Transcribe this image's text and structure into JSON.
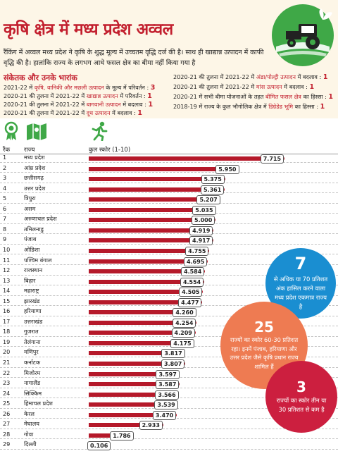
{
  "header": {
    "title": "कृषि क्षेत्र में मध्य प्रदेश अव्वल",
    "intro": "रैंकिंग में अव्वल मध्य प्रदेश ने कृषि के शुद्ध मूल्य में उच्चतम वृद्धि दर्ज की है। साथ ही खाद्यान्न उत्पादन में काफी वृद्धि की है। हालांकि राज्य के लगभग आधे फसल क्षेत्र का बीमा नहीं किया गया है"
  },
  "indicators": {
    "title": "संकेतक और उनके भारांक",
    "left": [
      {
        "pre": "2021-22 में ",
        "hl": "कृषि, वानिकी और मछली उत्पादन",
        "post": " के मूल्य में परिवर्तन : ",
        "value": "3"
      },
      {
        "pre": "2020-21 की तुलना में 2021-22 में ",
        "hl": "खाद्यान्न उत्पादन",
        "post": " में परिवर्तन : ",
        "value": "1"
      },
      {
        "pre": "2020-21 की तुलना में 2021-22 में ",
        "hl": "बागवानी उत्पादन",
        "post": " में बदलाव : ",
        "value": "1"
      },
      {
        "pre": "2020-21 की तुलना में 2021-22 में ",
        "hl": "दूध उत्पादन",
        "post": " में बदलाव : ",
        "value": "1"
      }
    ],
    "right": [
      {
        "pre": "2020-21 की तुलना में 2021-22 में ",
        "hl": "अंडा/पोल्ट्री उत्पादन",
        "post": " में बदलाव : ",
        "value": "1"
      },
      {
        "pre": "2020-21 की तुलना में 2021-22 में ",
        "hl": "मांस उत्पादन",
        "post": " में बदलाव : ",
        "value": "1"
      },
      {
        "pre": "2020-21 में सभी बीमा योजनाओं के तहत ",
        "hl": "बीमित फसल क्षेत्र",
        "post": " का हिस्सा : ",
        "value": "1"
      },
      {
        "pre": "2018-19 में राज्य के कुल भौगोलिक क्षेत्र में ",
        "hl": "डिग्रेडेड भूमि",
        "post": " का हिस्सा : ",
        "value": "1"
      }
    ]
  },
  "icons": [
    "medal-icon",
    "map-icon",
    "runner-icon"
  ],
  "colors": {
    "accent": "#c21f2e",
    "bar": "#b5192a",
    "blue": "#1a8ed1",
    "orange": "#ee7b52",
    "crimson": "#cc1f3f",
    "logo": "#3fa847"
  },
  "chart_data": {
    "type": "bar",
    "orientation": "horizontal",
    "columns": [
      "रैंक",
      "राज्य",
      "कुल स्कोर (1-10)"
    ],
    "xlim": [
      0,
      10
    ],
    "rows": [
      {
        "rank": "1",
        "state": "मध्य प्रदेश",
        "value": 7.715,
        "label": "7.715"
      },
      {
        "rank": "2",
        "state": "आंध्र प्रदेश",
        "value": 5.95,
        "label": "5.950"
      },
      {
        "rank": "3",
        "state": "छत्तीसगढ़",
        "value": 5.375,
        "label": "5.375"
      },
      {
        "rank": "4",
        "state": "उत्तर प्रदेश",
        "value": 5.361,
        "label": "5.361"
      },
      {
        "rank": "5",
        "state": "त्रिपुरा",
        "value": 5.207,
        "label": "5.207"
      },
      {
        "rank": "6",
        "state": "असम",
        "value": 5.035,
        "label": "5.035"
      },
      {
        "rank": "7",
        "state": "अरुणाचल प्रदेश",
        "value": 5.0,
        "label": "5.000"
      },
      {
        "rank": "8",
        "state": "तमिलनाडु",
        "value": 4.919,
        "label": "4.919"
      },
      {
        "rank": "9",
        "state": "पंजाब",
        "value": 4.917,
        "label": "4.917"
      },
      {
        "rank": "10",
        "state": "ओडिशा",
        "value": 4.755,
        "label": "4.755"
      },
      {
        "rank": "11",
        "state": "पश्चिम बंगाल",
        "value": 4.695,
        "label": "4.695"
      },
      {
        "rank": "12",
        "state": "राजस्थान",
        "value": 4.584,
        "label": "4.584"
      },
      {
        "rank": "13",
        "state": "बिहार",
        "value": 4.554,
        "label": "4.554"
      },
      {
        "rank": "14",
        "state": "महाराष्ट्र",
        "value": 4.505,
        "label": "4.505"
      },
      {
        "rank": "15",
        "state": "झारखंड",
        "value": 4.477,
        "label": "4.477"
      },
      {
        "rank": "16",
        "state": "हरियाणा",
        "value": 4.26,
        "label": "4.260"
      },
      {
        "rank": "17",
        "state": "उत्तराखंड",
        "value": 4.254,
        "label": "4.254"
      },
      {
        "rank": "18",
        "state": "गुजरात",
        "value": 4.209,
        "label": "4.209"
      },
      {
        "rank": "19",
        "state": "तेलंगाना",
        "value": 4.175,
        "label": "4.175"
      },
      {
        "rank": "20",
        "state": "मणिपुर",
        "value": 3.817,
        "label": "3.817"
      },
      {
        "rank": "21",
        "state": "कर्नाटक",
        "value": 3.807,
        "label": "3.807"
      },
      {
        "rank": "22",
        "state": "मिजोरम",
        "value": 3.597,
        "label": "3.597"
      },
      {
        "rank": "23",
        "state": "नागालैंड",
        "value": 3.587,
        "label": "3.587"
      },
      {
        "rank": "24",
        "state": "सिक्किम",
        "value": 3.566,
        "label": "3.566"
      },
      {
        "rank": "25",
        "state": "हिमाचल प्रदेश",
        "value": 3.539,
        "label": "3.539"
      },
      {
        "rank": "26",
        "state": "केरल",
        "value": 3.47,
        "label": "3.470"
      },
      {
        "rank": "27",
        "state": "मेघालय",
        "value": 2.933,
        "label": "2.933"
      },
      {
        "rank": "28",
        "state": "गोवा",
        "value": 1.786,
        "label": "1.786"
      },
      {
        "rank": "29",
        "state": "दिल्ली",
        "value": 0.106,
        "label": "0.106"
      }
    ]
  },
  "callouts": [
    {
      "number": "7",
      "text": "से अधिक या 70 प्रतिशत अंक हासिल करने वाला मध्य प्रदेश एकमात्र राज्य है",
      "color": "#1a8ed1"
    },
    {
      "number": "25",
      "text": "राज्यों का स्कोर 60-30 प्रतिशत रहा। इनमें पंजाब, हरियाणा और उत्तर प्रदेश जैसे कृषि प्रधान राज्य शामिल हैं",
      "color": "#ee7b52"
    },
    {
      "number": "3",
      "text": "राज्यों का स्कोर तीन या 30 प्रतिशत से कम है",
      "color": "#cc1f3f"
    }
  ]
}
